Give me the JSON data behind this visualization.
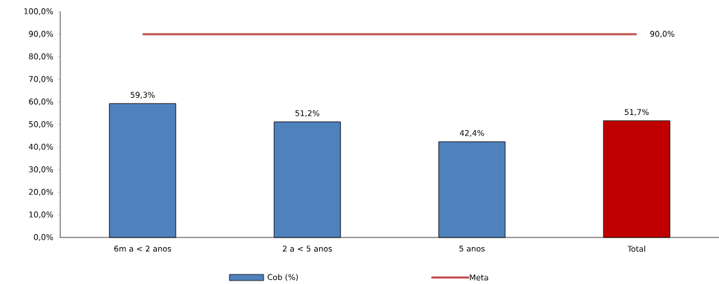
{
  "chart_data": {
    "type": "bar",
    "categories": [
      "6m a < 2 anos",
      "2 a < 5 anos",
      "5 anos",
      "Total"
    ],
    "series": [
      {
        "name": "Cob (%)",
        "colors": [
          "#4f81bd",
          "#4f81bd",
          "#4f81bd",
          "#c00000"
        ],
        "values": [
          59.3,
          51.2,
          42.4,
          51.7
        ],
        "value_labels": [
          "59,3%",
          "51,2%",
          "42,4%",
          "51,7%"
        ]
      },
      {
        "name": "Meta",
        "type": "line",
        "color": "#c0504d",
        "values": [
          90,
          90,
          90,
          90
        ],
        "value_labels": [
          null,
          null,
          null,
          "90,0%"
        ]
      }
    ],
    "ylim": [
      0,
      100
    ],
    "yticks": [
      {
        "value": 0,
        "label": "0,0%"
      },
      {
        "value": 10,
        "label": "10,0%"
      },
      {
        "value": 20,
        "label": "20,0%"
      },
      {
        "value": 30,
        "label": "30,0%"
      },
      {
        "value": 40,
        "label": "40,0%"
      },
      {
        "value": 50,
        "label": "50,0%"
      },
      {
        "value": 60,
        "label": "60,0%"
      },
      {
        "value": 70,
        "label": "70,0%"
      },
      {
        "value": 80,
        "label": "80,0%"
      },
      {
        "value": 90,
        "label": "90,0%"
      },
      {
        "value": 100,
        "label": "100,0%"
      }
    ],
    "legend": "bottom",
    "grid": false
  }
}
